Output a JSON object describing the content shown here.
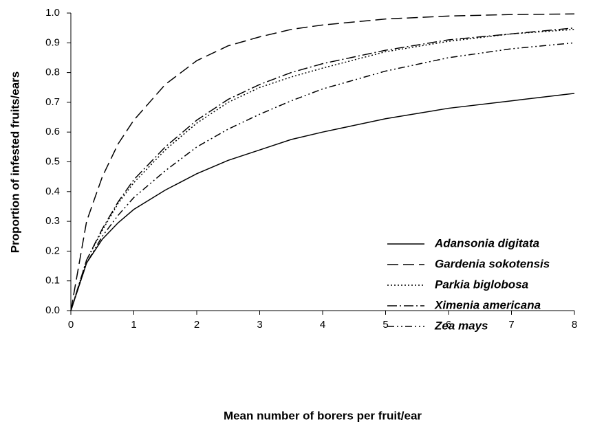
{
  "chart_data": {
    "type": "line",
    "xlabel": "Mean number of borers per fruit/ear",
    "ylabel": "Proportion of infested fruits/ears",
    "x": [
      0,
      0.25,
      0.5,
      0.75,
      1,
      1.5,
      2,
      2.5,
      3,
      3.5,
      4,
      5,
      6,
      7,
      8
    ],
    "series": [
      {
        "name": "Adansonia digitata",
        "color": "#000000",
        "dash": "solid",
        "values": [
          0,
          0.16,
          0.24,
          0.295,
          0.34,
          0.405,
          0.46,
          0.505,
          0.54,
          0.575,
          0.6,
          0.645,
          0.68,
          0.705,
          0.73
        ]
      },
      {
        "name": "Gardenia sokotensis",
        "color": "#000000",
        "dash": "dashed",
        "values": [
          0,
          0.3,
          0.45,
          0.56,
          0.64,
          0.76,
          0.84,
          0.89,
          0.92,
          0.945,
          0.96,
          0.98,
          0.99,
          0.995,
          0.997
        ]
      },
      {
        "name": "Parkia biglobosa",
        "color": "#000000",
        "dash": "dotted",
        "values": [
          0,
          0.17,
          0.27,
          0.36,
          0.43,
          0.54,
          0.63,
          0.7,
          0.75,
          0.785,
          0.815,
          0.87,
          0.905,
          0.93,
          0.945
        ]
      },
      {
        "name": "Ximenia americana",
        "color": "#000000",
        "dash": "dashdot",
        "values": [
          0,
          0.17,
          0.275,
          0.365,
          0.44,
          0.55,
          0.64,
          0.71,
          0.76,
          0.8,
          0.83,
          0.875,
          0.91,
          0.93,
          0.95
        ]
      },
      {
        "name": "Zea mays",
        "color": "#000000",
        "dash": "dashdotdot",
        "values": [
          0,
          0.16,
          0.25,
          0.32,
          0.38,
          0.47,
          0.55,
          0.61,
          0.66,
          0.705,
          0.745,
          0.805,
          0.85,
          0.88,
          0.9
        ]
      }
    ],
    "xlim": [
      0,
      8
    ],
    "xticks": [
      0,
      1,
      2,
      3,
      4,
      5,
      6,
      7,
      8
    ],
    "ylim": [
      0,
      1
    ],
    "yticks": [
      {
        "value": 0,
        "label": "0.0"
      },
      0.1,
      0.2,
      0.3,
      0.4,
      0.5,
      0.6,
      0.7,
      0.8,
      0.9,
      {
        "value": 1,
        "label": "1.0"
      }
    ],
    "grid": false,
    "legend": "center right"
  }
}
